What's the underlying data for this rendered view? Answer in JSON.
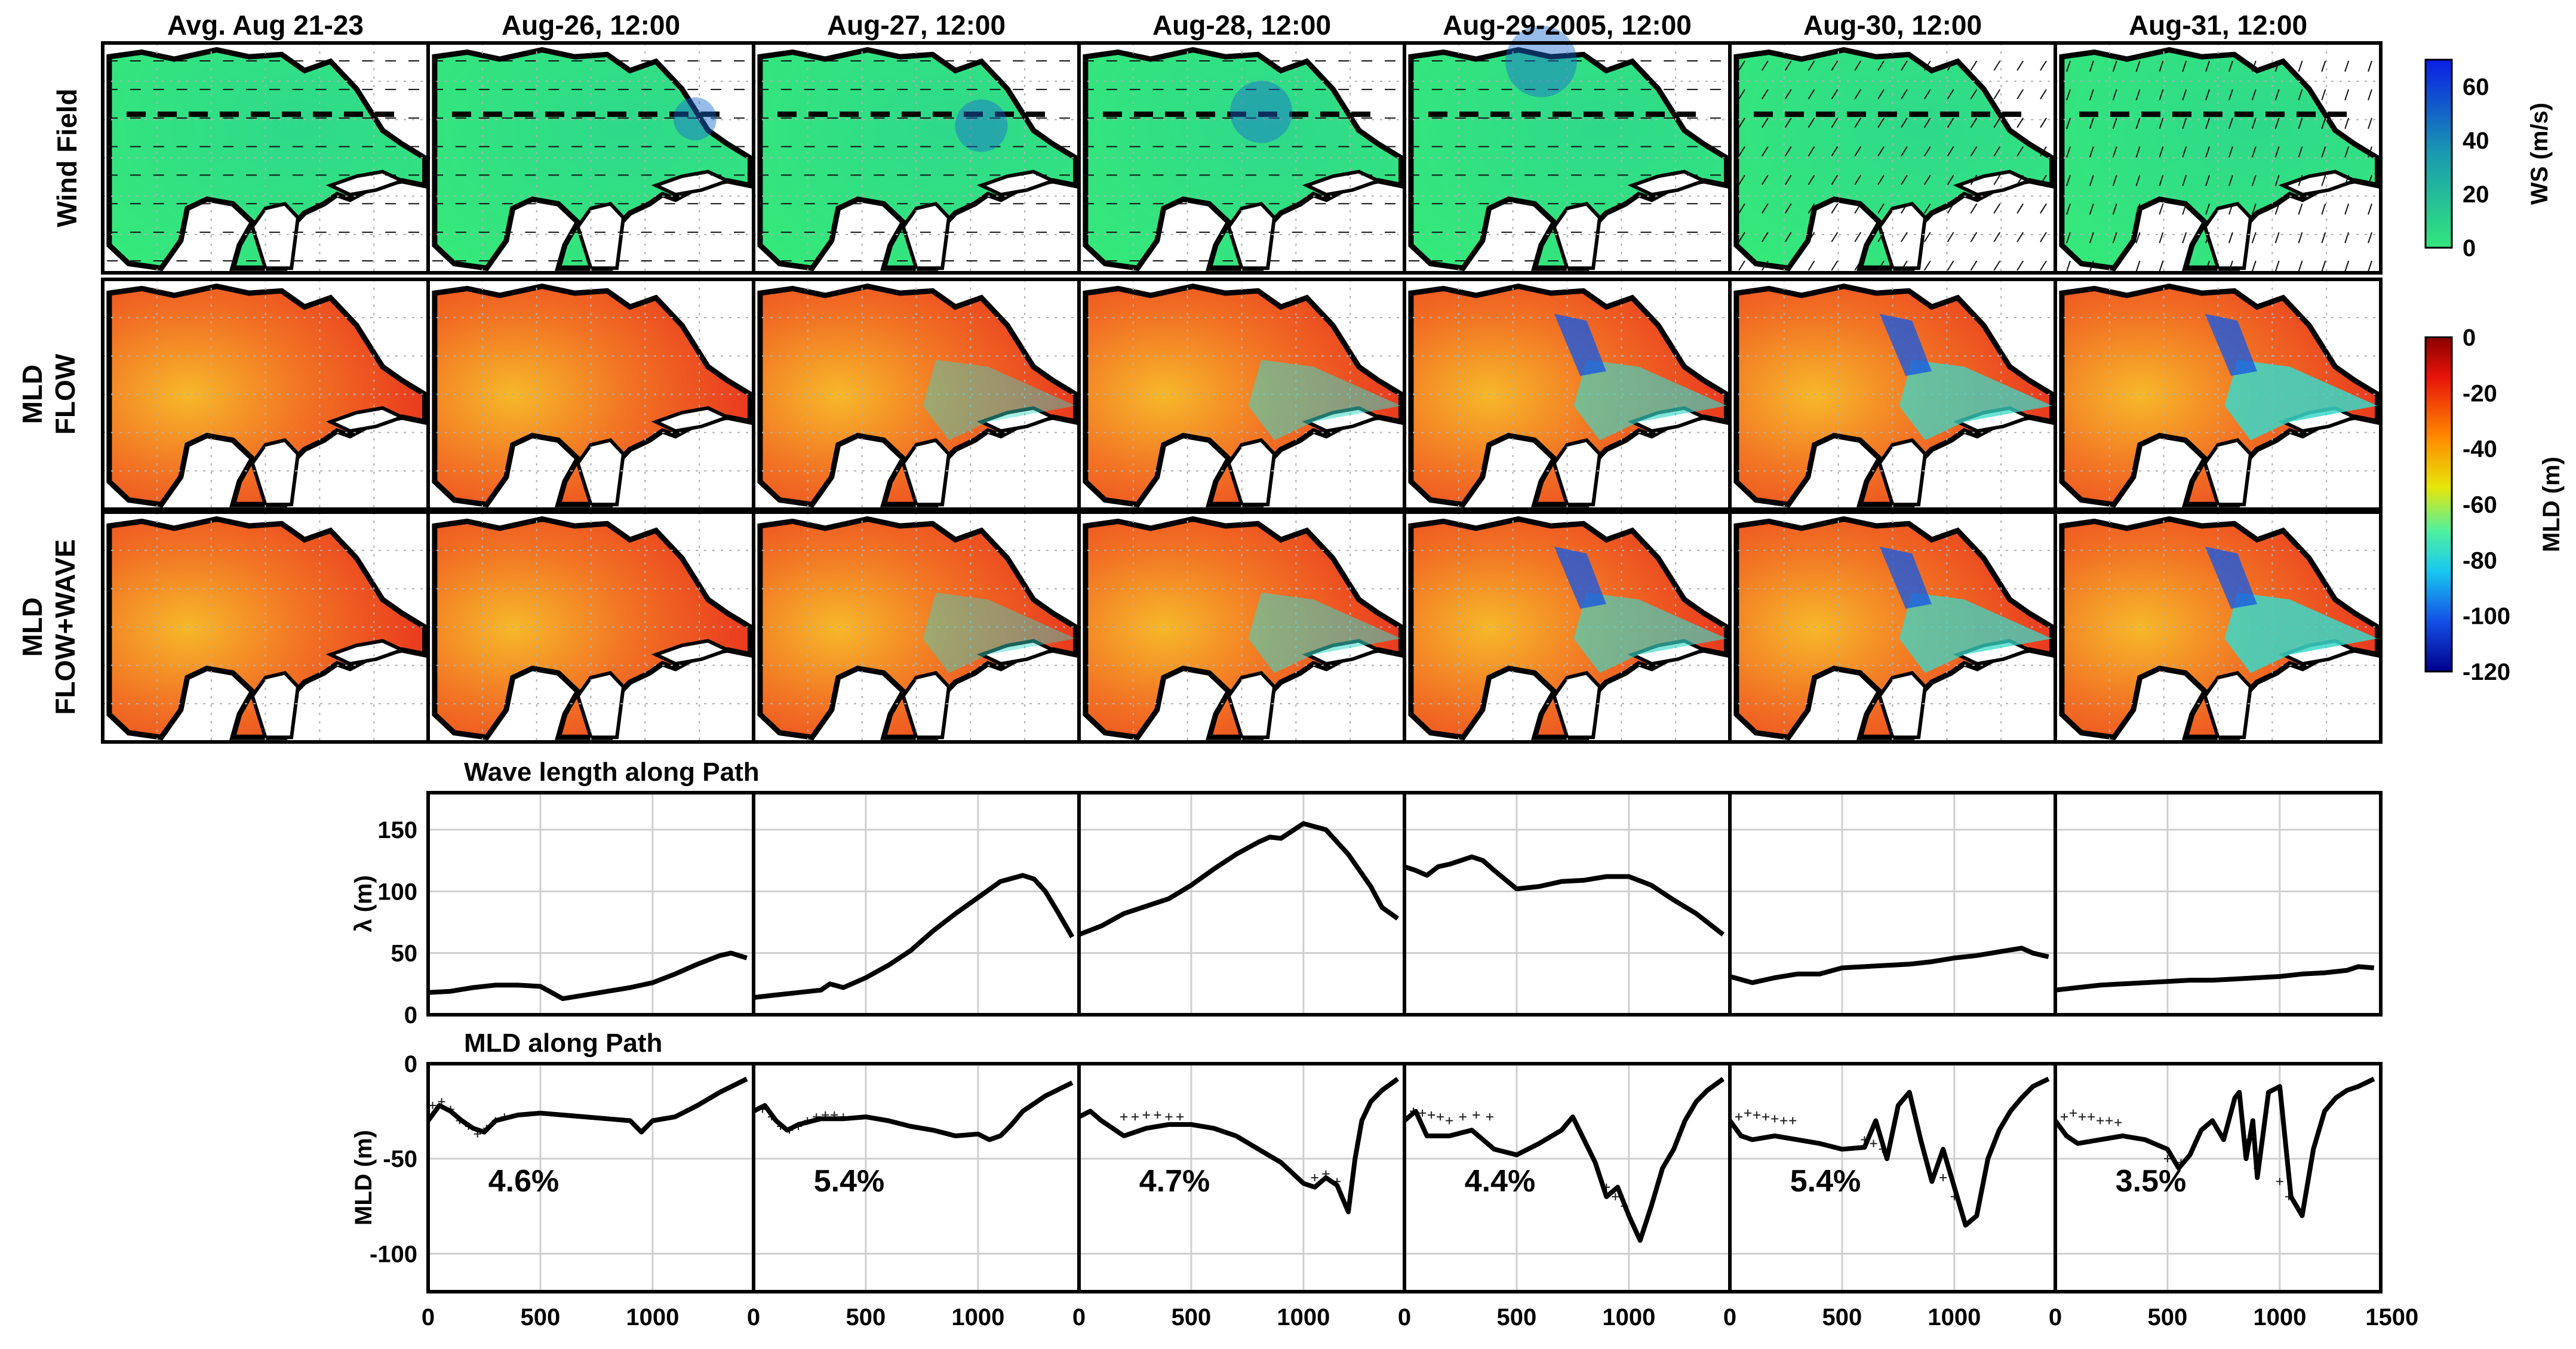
{
  "column_titles": [
    "Avg. Aug 21-23",
    "Aug-26, 12:00",
    "Aug-27, 12:00",
    "Aug-28, 12:00",
    "Aug-29-2005, 12:00",
    "Aug-30, 12:00",
    "Aug-31, 12:00"
  ],
  "row_labels": [
    {
      "line1": "Wind Field",
      "line2": ""
    },
    {
      "line1": "MLD",
      "line2": "FLOW"
    },
    {
      "line1": "MLD",
      "line2": "FLOW+WAVE"
    }
  ],
  "colors": {
    "land": "#ffffff",
    "coast": "#000000",
    "wind_low": "#32e67c",
    "mld_shallow": "#e8321e",
    "mld_deep": "#1a1aa0",
    "line": "#000000"
  },
  "colorbars": [
    {
      "label": "WS (m/s)",
      "ticks": [
        "60",
        "40",
        "20",
        "0"
      ],
      "range": [
        0,
        70
      ],
      "colormap": "winter-reversed"
    },
    {
      "label": "MLD (m)",
      "ticks": [
        "0",
        "-20",
        "-40",
        "-60",
        "-80",
        "-100",
        "-120"
      ],
      "range": [
        -120,
        0
      ],
      "colormap": "jet"
    }
  ],
  "chart_data": [
    {
      "type": "line",
      "title": "Wave length along Path",
      "ylabel": "λ (m)",
      "ylim": [
        0,
        180
      ],
      "yticks": [
        "150",
        "100",
        "50",
        "0"
      ],
      "xlim": [
        0,
        1450
      ],
      "grid": true,
      "panels": [
        {
          "x": [
            0,
            100,
            200,
            300,
            400,
            500,
            550,
            600,
            700,
            800,
            900,
            1000,
            1100,
            1200,
            1300,
            1350,
            1420
          ],
          "y": [
            18,
            19,
            22,
            24,
            24,
            23,
            18,
            13,
            16,
            19,
            22,
            26,
            33,
            41,
            48,
            50,
            46
          ]
        },
        {
          "x": [
            0,
            100,
            200,
            300,
            340,
            400,
            500,
            600,
            700,
            800,
            900,
            1000,
            1100,
            1200,
            1250,
            1300,
            1350,
            1420
          ],
          "y": [
            14,
            16,
            18,
            20,
            25,
            22,
            30,
            40,
            52,
            68,
            82,
            95,
            108,
            113,
            110,
            100,
            85,
            63
          ]
        },
        {
          "x": [
            0,
            100,
            200,
            300,
            400,
            500,
            600,
            700,
            800,
            850,
            900,
            1000,
            1100,
            1200,
            1300,
            1350,
            1420
          ],
          "y": [
            65,
            72,
            82,
            88,
            94,
            105,
            118,
            130,
            140,
            144,
            143,
            155,
            150,
            130,
            104,
            87,
            78
          ]
        },
        {
          "x": [
            0,
            50,
            100,
            150,
            200,
            300,
            350,
            400,
            500,
            600,
            700,
            800,
            900,
            1000,
            1100,
            1200,
            1300,
            1420
          ],
          "y": [
            120,
            117,
            113,
            120,
            122,
            128,
            125,
            117,
            102,
            104,
            108,
            109,
            112,
            112,
            105,
            93,
            82,
            65
          ]
        },
        {
          "x": [
            0,
            100,
            200,
            300,
            400,
            500,
            600,
            700,
            800,
            900,
            1000,
            1100,
            1200,
            1300,
            1350,
            1420
          ],
          "y": [
            31,
            26,
            30,
            33,
            33,
            38,
            39,
            40,
            41,
            43,
            46,
            48,
            51,
            54,
            50,
            47
          ]
        },
        {
          "x": [
            0,
            100,
            200,
            300,
            400,
            500,
            600,
            700,
            800,
            900,
            1000,
            1100,
            1200,
            1300,
            1350,
            1420
          ],
          "y": [
            20,
            22,
            24,
            25,
            26,
            27,
            28,
            28,
            29,
            30,
            31,
            33,
            34,
            36,
            39,
            38
          ]
        }
      ]
    },
    {
      "type": "line",
      "title": "MLD along Path",
      "ylabel": "MLD (m)",
      "ylim": [
        -120,
        0
      ],
      "yticks": [
        "0",
        "-50",
        "-100"
      ],
      "xlim": [
        0,
        1450
      ],
      "xticks": [
        "0",
        "500",
        "1000"
      ],
      "xticks_last": [
        "0",
        "500",
        "1000",
        "1500"
      ],
      "grid": true,
      "panels": [
        {
          "label": "4.6%",
          "x": [
            0,
            50,
            100,
            150,
            200,
            250,
            300,
            400,
            500,
            600,
            700,
            800,
            900,
            950,
            1000,
            1100,
            1200,
            1300,
            1420
          ],
          "y": [
            -30,
            -22,
            -25,
            -30,
            -34,
            -36,
            -30,
            -27,
            -26,
            -27,
            -28,
            -29,
            -30,
            -36,
            -30,
            -28,
            -22,
            -15,
            -8
          ],
          "markers_x": [
            20,
            60,
            100,
            140,
            180,
            220,
            260,
            300,
            340
          ],
          "markers_y": [
            -22,
            -20,
            -24,
            -30,
            -33,
            -37,
            -34,
            -30,
            -28
          ]
        },
        {
          "label": "5.4%",
          "x": [
            0,
            50,
            100,
            150,
            200,
            300,
            400,
            500,
            600,
            700,
            800,
            900,
            1000,
            1050,
            1100,
            1150,
            1200,
            1300,
            1420
          ],
          "y": [
            -25,
            -22,
            -30,
            -35,
            -32,
            -29,
            -29,
            -28,
            -30,
            -33,
            -35,
            -38,
            -37,
            -40,
            -38,
            -32,
            -25,
            -17,
            -10
          ],
          "markers_x": [
            40,
            80,
            120,
            160,
            200,
            240,
            280,
            320,
            360,
            400
          ],
          "markers_y": [
            -24,
            -28,
            -33,
            -35,
            -33,
            -30,
            -28,
            -27,
            -27,
            -28
          ]
        },
        {
          "label": "4.7%",
          "x": [
            0,
            50,
            100,
            200,
            300,
            400,
            500,
            600,
            700,
            800,
            900,
            1000,
            1050,
            1100,
            1150,
            1200,
            1230,
            1260,
            1300,
            1350,
            1420
          ],
          "y": [
            -28,
            -25,
            -30,
            -38,
            -34,
            -32,
            -32,
            -34,
            -38,
            -45,
            -52,
            -63,
            -65,
            -60,
            -64,
            -78,
            -50,
            -30,
            -20,
            -14,
            -8
          ],
          "markers_x": [
            200,
            250,
            300,
            350,
            400,
            450,
            1050,
            1100,
            1150
          ],
          "markers_y": [
            -28,
            -28,
            -27,
            -27,
            -28,
            -28,
            -60,
            -58,
            -62
          ]
        },
        {
          "label": "4.4%",
          "x": [
            0,
            50,
            100,
            200,
            300,
            400,
            500,
            600,
            700,
            750,
            800,
            850,
            900,
            950,
            1000,
            1050,
            1100,
            1150,
            1200,
            1250,
            1300,
            1350,
            1420
          ],
          "y": [
            -30,
            -25,
            -38,
            -38,
            -35,
            -45,
            -48,
            -42,
            -35,
            -28,
            -40,
            -52,
            -70,
            -65,
            -80,
            -93,
            -75,
            -55,
            -45,
            -30,
            -20,
            -14,
            -8
          ],
          "markers_x": [
            40,
            80,
            120,
            160,
            200,
            260,
            320,
            380,
            900,
            940,
            980
          ],
          "markers_y": [
            -25,
            -26,
            -27,
            -28,
            -30,
            -28,
            -27,
            -28,
            -65,
            -70,
            -75
          ]
        },
        {
          "label": "5.4%",
          "x": [
            0,
            50,
            100,
            200,
            300,
            400,
            500,
            600,
            650,
            700,
            750,
            800,
            850,
            900,
            950,
            1000,
            1050,
            1100,
            1150,
            1200,
            1250,
            1300,
            1350,
            1420
          ],
          "y": [
            -30,
            -38,
            -40,
            -38,
            -40,
            -42,
            -45,
            -44,
            -30,
            -50,
            -22,
            -15,
            -40,
            -62,
            -45,
            -65,
            -85,
            -80,
            -50,
            -35,
            -25,
            -18,
            -12,
            -8
          ],
          "markers_x": [
            40,
            80,
            120,
            160,
            200,
            240,
            280,
            600,
            640,
            680,
            950,
            1000
          ],
          "markers_y": [
            -28,
            -26,
            -27,
            -28,
            -29,
            -30,
            -30,
            -40,
            -42,
            -45,
            -60,
            -70
          ]
        },
        {
          "label": "3.5%",
          "x": [
            0,
            50,
            100,
            200,
            300,
            400,
            500,
            550,
            600,
            650,
            700,
            750,
            800,
            820,
            850,
            880,
            900,
            950,
            1000,
            1050,
            1100,
            1150,
            1200,
            1250,
            1300,
            1350,
            1420
          ],
          "y": [
            -30,
            -38,
            -42,
            -40,
            -38,
            -40,
            -45,
            -55,
            -48,
            -35,
            -30,
            -40,
            -18,
            -15,
            -50,
            -30,
            -60,
            -15,
            -12,
            -70,
            -80,
            -45,
            -25,
            -18,
            -14,
            -12,
            -8
          ],
          "markers_x": [
            40,
            80,
            120,
            160,
            200,
            240,
            280,
            500,
            560,
            860,
            900,
            1000,
            1040
          ],
          "markers_y": [
            -28,
            -26,
            -28,
            -28,
            -30,
            -30,
            -31,
            -50,
            -52,
            -40,
            -55,
            -62,
            -70
          ]
        }
      ]
    }
  ]
}
